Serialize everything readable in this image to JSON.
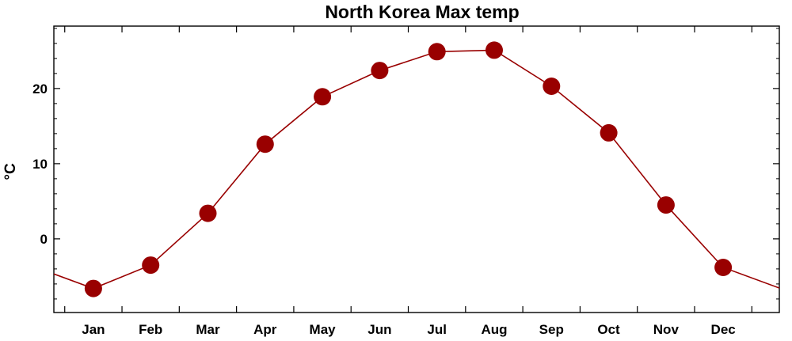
{
  "chart_data": {
    "type": "line",
    "title": "North Korea Max temp",
    "xlabel": "",
    "ylabel": "°C",
    "categories": [
      "Jan",
      "Feb",
      "Mar",
      "Apr",
      "May",
      "Jun",
      "Jul",
      "Aug",
      "Sep",
      "Oct",
      "Nov",
      "Dec"
    ],
    "series": [
      {
        "values": [
          -6.6,
          -3.5,
          3.4,
          12.6,
          18.9,
          22.4,
          24.9,
          25.1,
          20.3,
          14.1,
          4.5,
          -3.8
        ],
        "color": "#990000"
      }
    ],
    "ylim": [
      -9.8,
      28.3
    ],
    "yticks": [
      0,
      10,
      20
    ],
    "yticklabels": [
      "0",
      "10",
      "20"
    ],
    "grid": false,
    "legend": "none"
  }
}
